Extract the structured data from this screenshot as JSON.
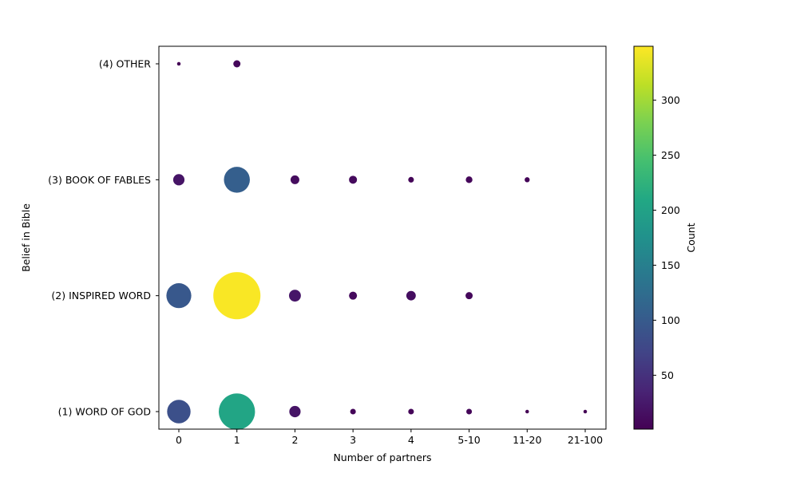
{
  "chart_data": {
    "type": "scatter",
    "subtype": "bubble",
    "title": "",
    "xlabel": "Number of partners",
    "ylabel": "Belief in Bible",
    "colorbar_label": "Count",
    "colormap": "viridis",
    "color_range": [
      1,
      349
    ],
    "colorbar_ticks": [
      50,
      100,
      150,
      200,
      250,
      300
    ],
    "categories_x": [
      "0",
      "1",
      "2",
      "3",
      "4",
      "5-10",
      "11-20",
      "21-100"
    ],
    "categories_y": [
      "(1) WORD OF GOD",
      "(2) INSPIRED WORD",
      "(3) BOOK OF FABLES",
      "(4) OTHER"
    ],
    "grid": false,
    "points": [
      {
        "y": "(4) OTHER",
        "x": "0",
        "count": 2
      },
      {
        "y": "(4) OTHER",
        "x": "1",
        "count": 8
      },
      {
        "y": "(3) BOOK OF FABLES",
        "x": "0",
        "count": 20
      },
      {
        "y": "(3) BOOK OF FABLES",
        "x": "1",
        "count": 105
      },
      {
        "y": "(3) BOOK OF FABLES",
        "x": "2",
        "count": 12
      },
      {
        "y": "(3) BOOK OF FABLES",
        "x": "3",
        "count": 10
      },
      {
        "y": "(3) BOOK OF FABLES",
        "x": "4",
        "count": 5
      },
      {
        "y": "(3) BOOK OF FABLES",
        "x": "5-10",
        "count": 7
      },
      {
        "y": "(3) BOOK OF FABLES",
        "x": "11-20",
        "count": 4
      },
      {
        "y": "(2) INSPIRED WORD",
        "x": "0",
        "count": 97
      },
      {
        "y": "(2) INSPIRED WORD",
        "x": "1",
        "count": 347
      },
      {
        "y": "(2) INSPIRED WORD",
        "x": "2",
        "count": 22
      },
      {
        "y": "(2) INSPIRED WORD",
        "x": "3",
        "count": 10
      },
      {
        "y": "(2) INSPIRED WORD",
        "x": "4",
        "count": 14
      },
      {
        "y": "(2) INSPIRED WORD",
        "x": "5-10",
        "count": 8
      },
      {
        "y": "(1) WORD OF GOD",
        "x": "0",
        "count": 86
      },
      {
        "y": "(1) WORD OF GOD",
        "x": "1",
        "count": 205
      },
      {
        "y": "(1) WORD OF GOD",
        "x": "2",
        "count": 20
      },
      {
        "y": "(1) WORD OF GOD",
        "x": "3",
        "count": 5
      },
      {
        "y": "(1) WORD OF GOD",
        "x": "4",
        "count": 5
      },
      {
        "y": "(1) WORD OF GOD",
        "x": "5-10",
        "count": 5
      },
      {
        "y": "(1) WORD OF GOD",
        "x": "11-20",
        "count": 2
      },
      {
        "y": "(1) WORD OF GOD",
        "x": "21-100",
        "count": 2
      }
    ]
  },
  "labels": {
    "xlabel": "Number of partners",
    "ylabel": "Belief in Bible",
    "colorbar_label": "Count"
  }
}
